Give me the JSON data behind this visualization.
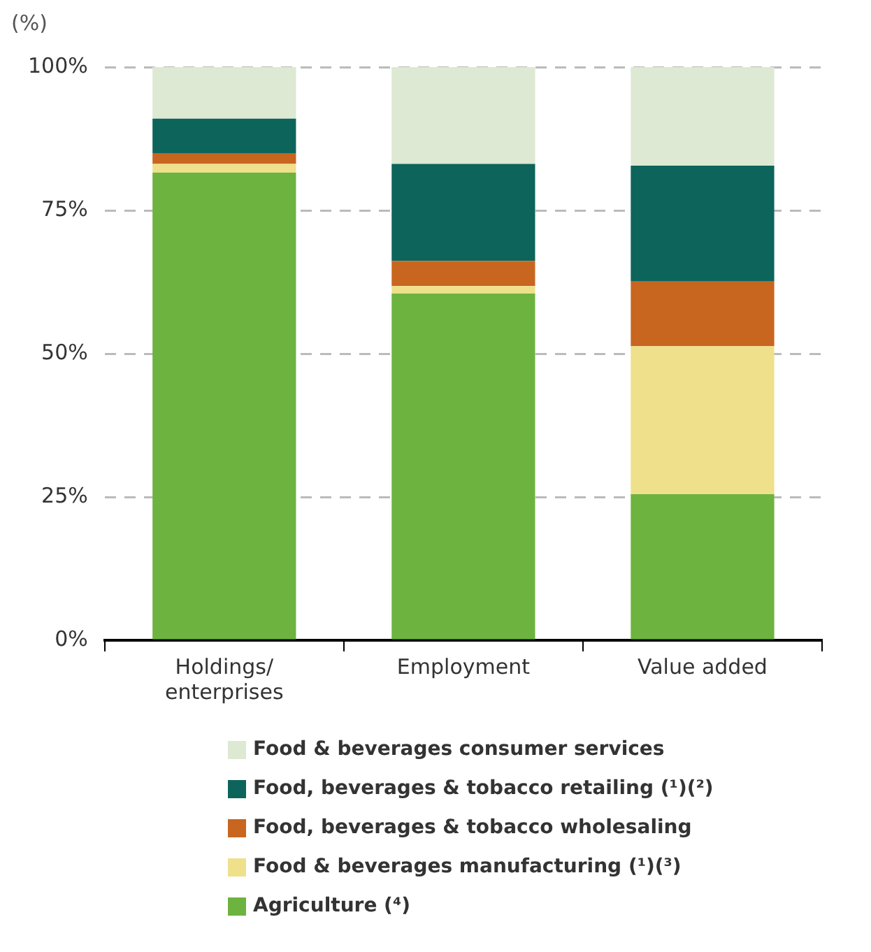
{
  "chart_data": {
    "type": "bar",
    "stacked": true,
    "ylabel": "(%)",
    "categories": [
      "Holdings/ enterprises",
      "Employment",
      "Value added"
    ],
    "series": [
      {
        "name": "Agriculture (⁴)",
        "color": "#6db33f",
        "values": [
          81.6,
          60.5,
          25.5
        ]
      },
      {
        "name": "Food & beverages manufacturing (¹)(³)",
        "color": "#efe08c",
        "values": [
          1.5,
          1.3,
          25.8
        ]
      },
      {
        "name": "Food, beverages & tobacco wholesaling",
        "color": "#c8651f",
        "values": [
          1.8,
          4.4,
          11.3
        ]
      },
      {
        "name": "Food, beverages & tobacco retailing (¹)(²)",
        "color": "#0d645b",
        "values": [
          6.1,
          16.9,
          20.2
        ]
      },
      {
        "name": "Food & beverages consumer services",
        "color": "#dde9d2",
        "values": [
          9.0,
          16.9,
          17.2
        ]
      }
    ],
    "ylim": [
      0,
      100
    ],
    "yticks": [
      {
        "value": 0,
        "label": "0%"
      },
      {
        "value": 25,
        "label": "25%"
      },
      {
        "value": 50,
        "label": "50%"
      },
      {
        "value": 75,
        "label": "75%"
      },
      {
        "value": 100,
        "label": "100%"
      }
    ],
    "grid": "y",
    "legend": "bottom"
  }
}
